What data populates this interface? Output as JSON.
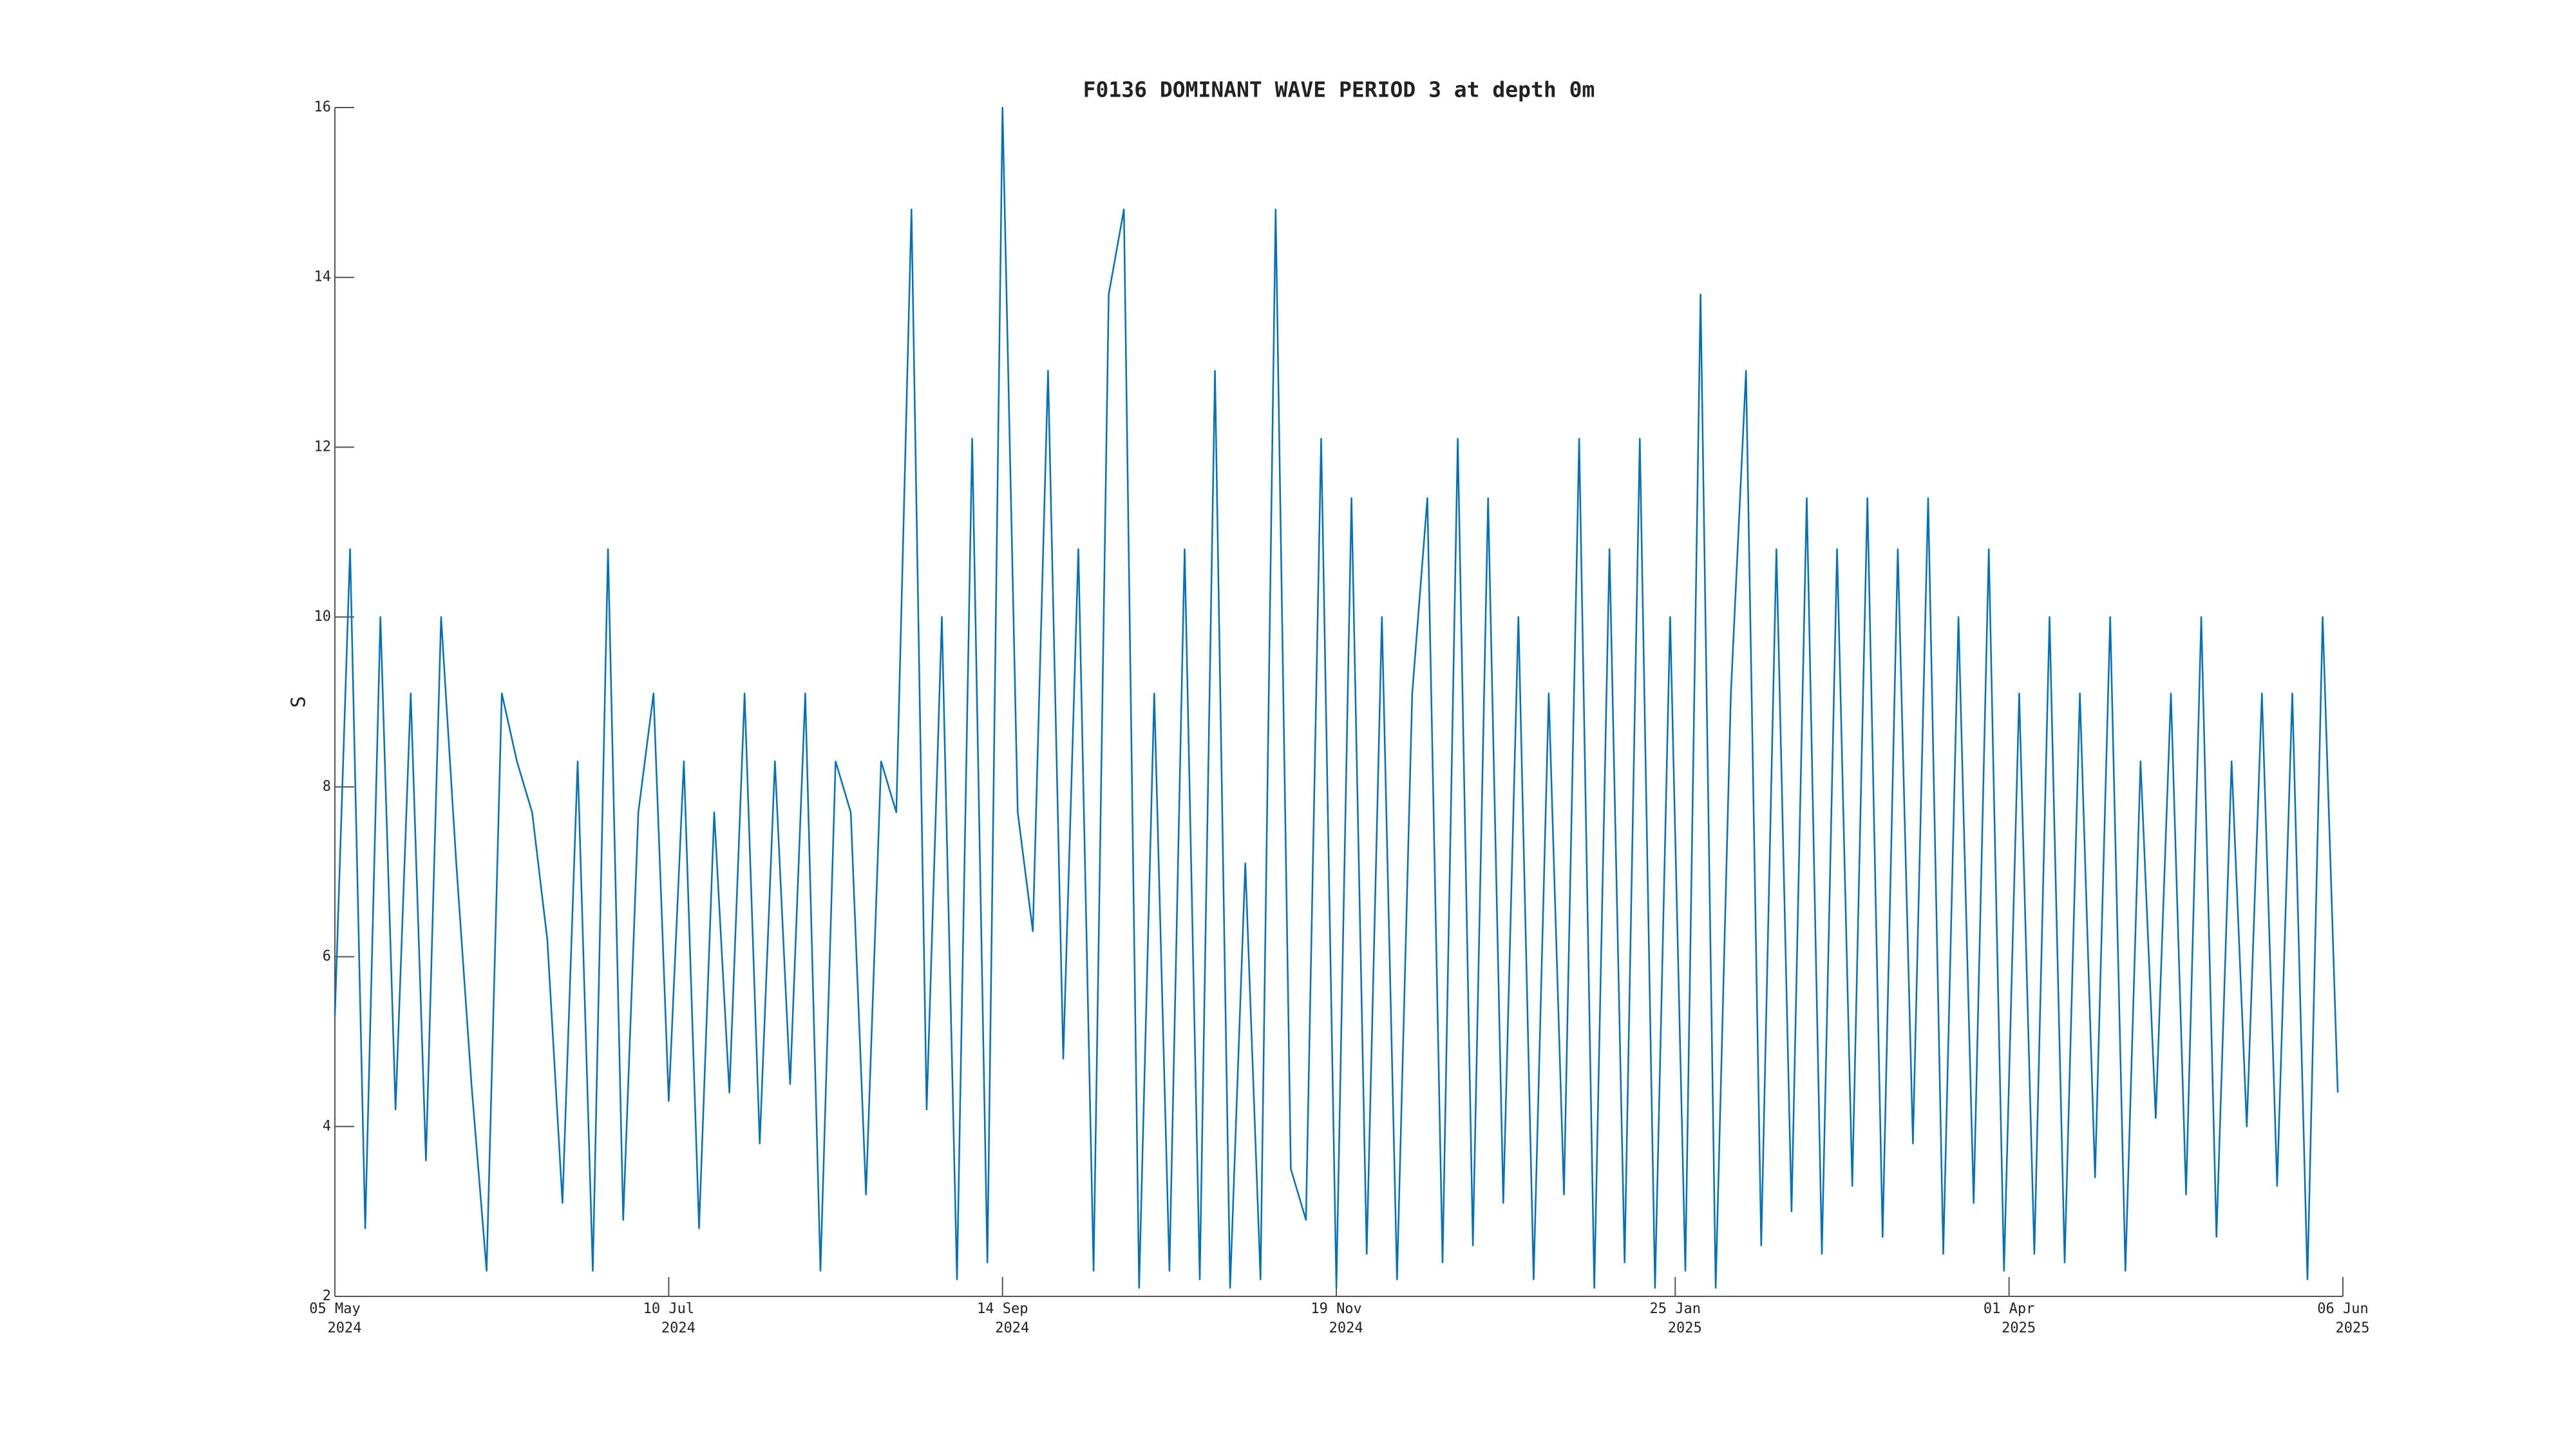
{
  "chart_data": {
    "type": "line",
    "title": "F0136 DOMINANT WAVE PERIOD 3 at depth 0m",
    "ylabel": "S",
    "color": "#0072bd",
    "grid": false,
    "xlim": [
      "2024-05-05",
      "2025-06-06"
    ],
    "xticks": [
      {
        "value": "2024-05-05",
        "label": "05 May\n2024"
      },
      {
        "value": "2024-07-10",
        "label": "10 Jul\n2024"
      },
      {
        "value": "2024-09-14",
        "label": "14 Sep\n2024"
      },
      {
        "value": "2024-11-19",
        "label": "19 Nov\n2024"
      },
      {
        "value": "2025-01-25",
        "label": "25 Jan\n2025"
      },
      {
        "value": "2025-04-01",
        "label": "01 Apr\n2025"
      },
      {
        "value": "2025-06-06",
        "label": "06 Jun\n2025"
      }
    ],
    "ylim": [
      2,
      16
    ],
    "yticks": [
      2,
      4,
      6,
      8,
      10,
      12,
      14,
      16
    ],
    "x": [
      "2024-05-05",
      "2024-05-08",
      "2024-05-11",
      "2024-05-14",
      "2024-05-17",
      "2024-05-20",
      "2024-05-23",
      "2024-05-26",
      "2024-05-29",
      "2024-06-01",
      "2024-06-04",
      "2024-06-07",
      "2024-06-10",
      "2024-06-13",
      "2024-06-16",
      "2024-06-19",
      "2024-06-22",
      "2024-06-25",
      "2024-06-28",
      "2024-07-01",
      "2024-07-04",
      "2024-07-07",
      "2024-07-10",
      "2024-07-13",
      "2024-07-16",
      "2024-07-19",
      "2024-07-22",
      "2024-07-25",
      "2024-07-28",
      "2024-07-31",
      "2024-08-03",
      "2024-08-06",
      "2024-08-09",
      "2024-08-12",
      "2024-08-15",
      "2024-08-18",
      "2024-08-21",
      "2024-08-24",
      "2024-08-27",
      "2024-08-30",
      "2024-09-02",
      "2024-09-05",
      "2024-09-08",
      "2024-09-11",
      "2024-09-14",
      "2024-09-17",
      "2024-09-20",
      "2024-09-23",
      "2024-09-26",
      "2024-09-29",
      "2024-10-02",
      "2024-10-05",
      "2024-10-08",
      "2024-10-11",
      "2024-10-14",
      "2024-10-17",
      "2024-10-20",
      "2024-10-23",
      "2024-10-26",
      "2024-10-29",
      "2024-11-01",
      "2024-11-04",
      "2024-11-07",
      "2024-11-10",
      "2024-11-13",
      "2024-11-16",
      "2024-11-19",
      "2024-11-22",
      "2024-11-25",
      "2024-11-28",
      "2024-12-01",
      "2024-12-04",
      "2024-12-07",
      "2024-12-10",
      "2024-12-13",
      "2024-12-16",
      "2024-12-19",
      "2024-12-22",
      "2024-12-25",
      "2024-12-28",
      "2024-12-31",
      "2025-01-03",
      "2025-01-06",
      "2025-01-09",
      "2025-01-12",
      "2025-01-15",
      "2025-01-18",
      "2025-01-21",
      "2025-01-24",
      "2025-01-27",
      "2025-01-30",
      "2025-02-02",
      "2025-02-05",
      "2025-02-08",
      "2025-02-11",
      "2025-02-14",
      "2025-02-17",
      "2025-02-20",
      "2025-02-23",
      "2025-02-26",
      "2025-03-01",
      "2025-03-04",
      "2025-03-07",
      "2025-03-10",
      "2025-03-13",
      "2025-03-16",
      "2025-03-19",
      "2025-03-22",
      "2025-03-25",
      "2025-03-28",
      "2025-03-31",
      "2025-04-03",
      "2025-04-06",
      "2025-04-09",
      "2025-04-12",
      "2025-04-15",
      "2025-04-18",
      "2025-04-21",
      "2025-04-24",
      "2025-04-27",
      "2025-04-30",
      "2025-05-03",
      "2025-05-06",
      "2025-05-09",
      "2025-05-12",
      "2025-05-15",
      "2025-05-18",
      "2025-05-21",
      "2025-05-24",
      "2025-05-27",
      "2025-05-30",
      "2025-06-02",
      "2025-06-05"
    ],
    "values": [
      5.3,
      10.8,
      2.8,
      10.0,
      4.2,
      9.1,
      3.6,
      10.0,
      7.1,
      4.5,
      2.3,
      9.1,
      8.3,
      7.7,
      6.2,
      3.1,
      8.3,
      2.3,
      10.8,
      2.9,
      7.7,
      9.1,
      4.3,
      8.3,
      2.8,
      7.7,
      4.4,
      9.1,
      3.8,
      8.3,
      4.5,
      9.1,
      2.3,
      8.3,
      7.7,
      3.2,
      8.3,
      7.7,
      14.8,
      4.2,
      10.0,
      2.2,
      12.1,
      2.4,
      16.0,
      7.7,
      6.3,
      12.9,
      4.8,
      10.8,
      2.3,
      13.8,
      14.8,
      2.1,
      9.1,
      2.3,
      10.8,
      2.2,
      12.9,
      2.1,
      7.1,
      2.2,
      14.8,
      3.5,
      2.9,
      12.1,
      2.1,
      11.4,
      2.5,
      10.0,
      2.2,
      9.1,
      11.4,
      2.4,
      12.1,
      2.6,
      11.4,
      3.1,
      10.0,
      2.2,
      9.1,
      3.2,
      12.1,
      2.1,
      10.8,
      2.4,
      12.1,
      2.1,
      10.0,
      2.3,
      13.8,
      2.1,
      9.1,
      12.9,
      2.6,
      10.8,
      3.0,
      11.4,
      2.5,
      10.8,
      3.3,
      11.4,
      2.7,
      10.8,
      3.8,
      11.4,
      2.5,
      10.0,
      3.1,
      10.8,
      2.3,
      9.1,
      2.5,
      10.0,
      2.4,
      9.1,
      3.4,
      10.0,
      2.3,
      8.3,
      4.1,
      9.1,
      3.2,
      10.0,
      2.7,
      8.3,
      4.0,
      9.1,
      3.3,
      9.1,
      2.2,
      10.0,
      4.4
    ]
  }
}
